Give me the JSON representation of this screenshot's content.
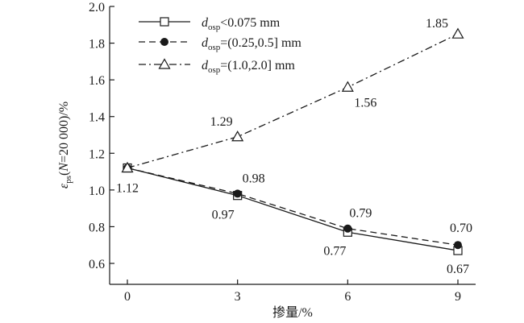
{
  "chart_data": {
    "type": "line",
    "xlabel": "掺量/%",
    "ylabel": {
      "symbol": "ε",
      "subscript": "ps",
      "open": "(",
      "n": "N",
      "rest": "=20 000)/%"
    },
    "x": [
      0,
      3,
      6,
      9
    ],
    "xticks": [
      "0",
      "3",
      "6",
      "9"
    ],
    "ylim": [
      0.6,
      2.0
    ],
    "yticks": [
      "0.6",
      "0.8",
      "1.0",
      "1.2",
      "1.4",
      "1.6",
      "1.8",
      "2.0"
    ],
    "grid": false,
    "legend_position": "top-left",
    "series": [
      {
        "name": "d_osp<0.075 mm",
        "legend": {
          "symbol": "d",
          "subscript": "osp",
          "text": "<0.075 mm"
        },
        "values": [
          1.12,
          0.97,
          0.77,
          0.67
        ],
        "labels": [
          "1.12",
          "0.97",
          "0.77",
          "0.67"
        ],
        "marker": "open-square",
        "line_style": "solid",
        "color": "#1a1a1a"
      },
      {
        "name": "d_osp=(0.25,0.5] mm",
        "legend": {
          "symbol": "d",
          "subscript": "osp",
          "text": "=(0.25,0.5] mm"
        },
        "values": [
          1.12,
          0.98,
          0.79,
          0.7
        ],
        "labels": [
          "",
          "0.98",
          "0.79",
          "0.70"
        ],
        "marker": "filled-circle",
        "line_style": "dashed",
        "color": "#1a1a1a"
      },
      {
        "name": "d_osp=(1.0,2.0] mm",
        "legend": {
          "symbol": "d",
          "subscript": "osp",
          "text": "=(1.0,2.0] mm"
        },
        "values": [
          1.12,
          1.29,
          1.56,
          1.85
        ],
        "labels": [
          "",
          "1.29",
          "1.56",
          "1.85"
        ],
        "marker": "open-triangle",
        "line_style": "dash-dot",
        "color": "#1a1a1a"
      }
    ]
  }
}
